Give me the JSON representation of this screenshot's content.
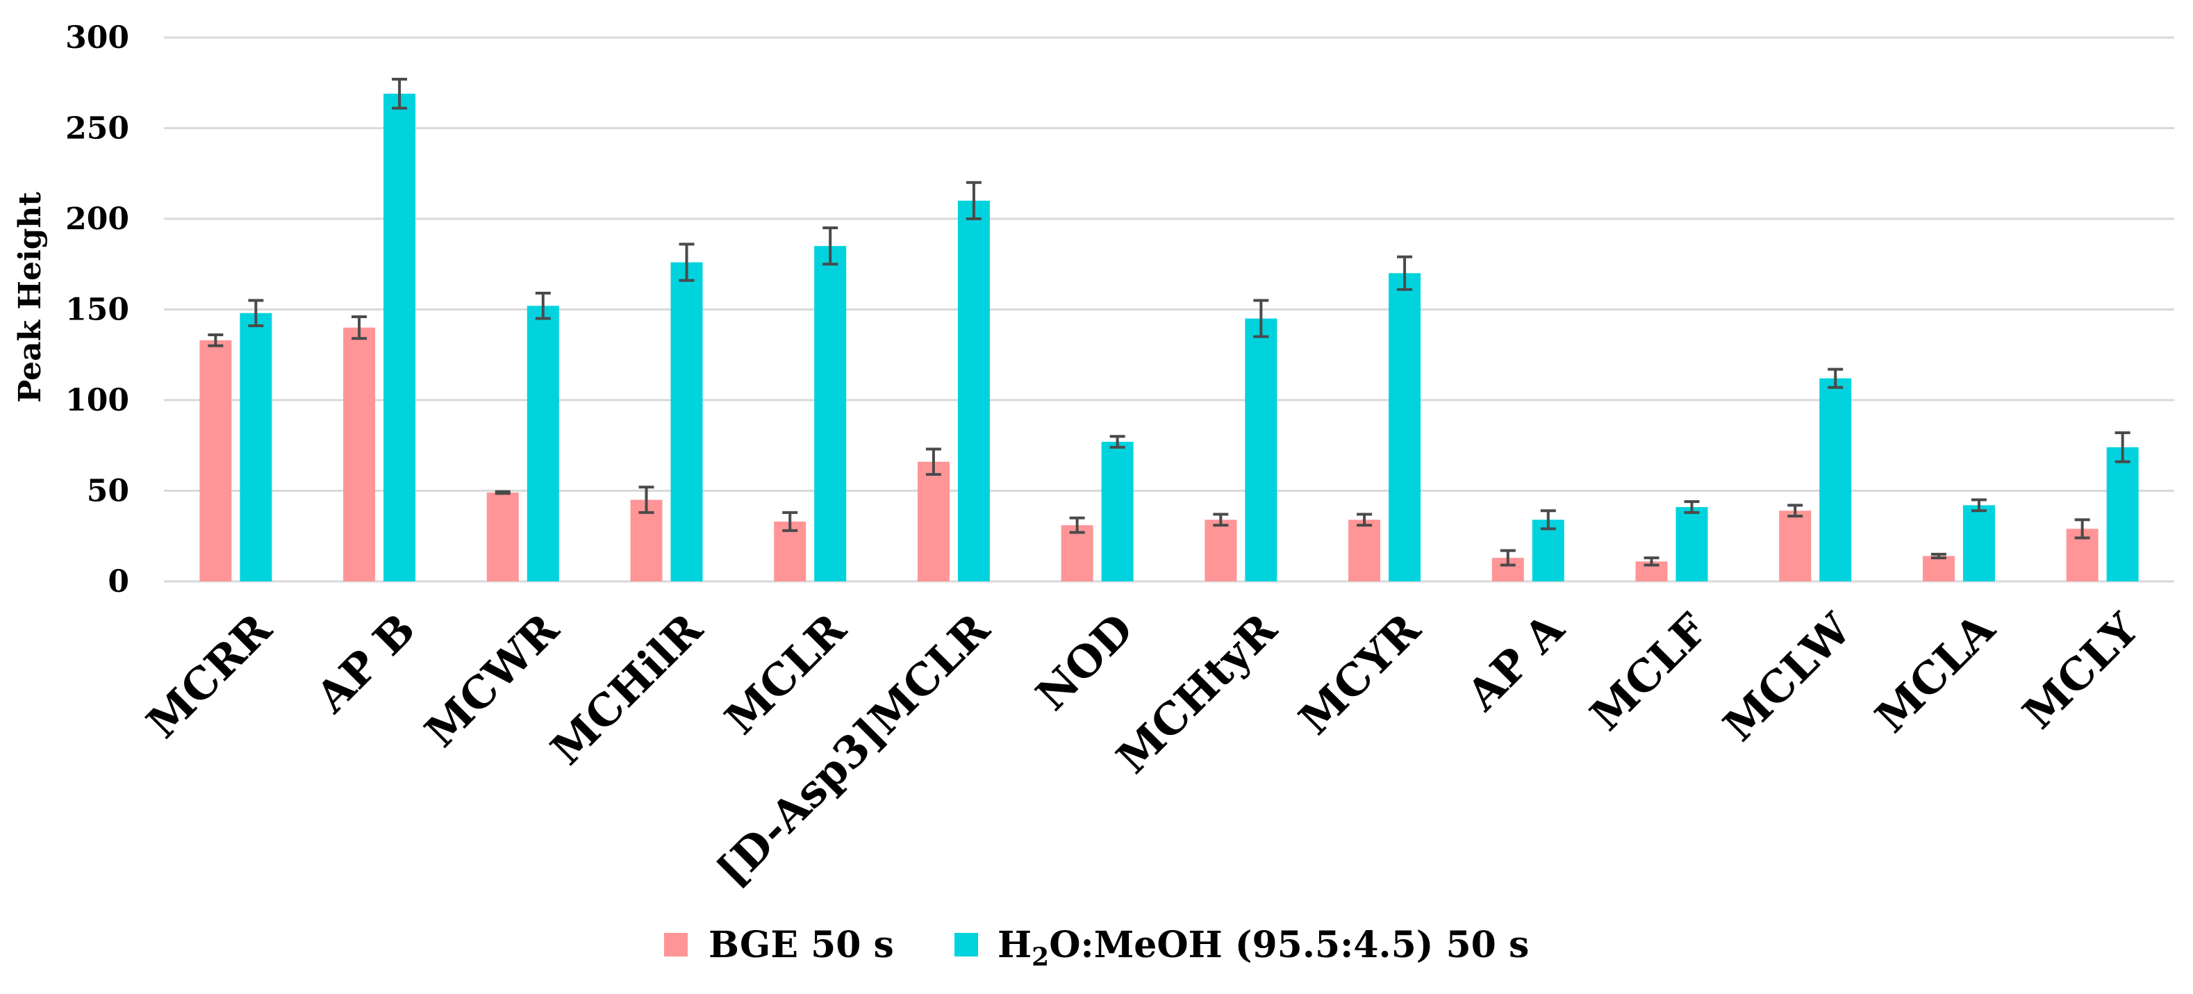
{
  "chart_data": {
    "type": "bar",
    "title": "",
    "xlabel": "",
    "ylabel": "Peak Height",
    "ylim": [
      0,
      300
    ],
    "yticks": [
      0,
      50,
      100,
      150,
      200,
      250,
      300
    ],
    "grid": true,
    "legend_position": "bottom",
    "categories": [
      "MCRR",
      "AP B",
      "MCWR",
      "MCHilR",
      "MCLR",
      "[D-Asp3]MCLR",
      "NOD",
      "MCHtyR",
      "MCYR",
      "AP A",
      "MCLF",
      "MCLW",
      "MCLA",
      "MCLY"
    ],
    "series": [
      {
        "name": "BGE 50 s",
        "color": "#ff9596",
        "values": [
          133,
          140,
          49,
          45,
          33,
          66,
          31,
          34,
          34,
          13,
          11,
          39,
          14,
          29
        ],
        "errors": [
          3,
          6,
          0.5,
          7,
          5,
          7,
          4,
          3,
          3,
          4,
          2,
          3,
          1,
          5
        ]
      },
      {
        "name": "H2O:MeOH (95.5:4.5) 50 s",
        "color": "#00d3de",
        "values": [
          148,
          269,
          152,
          176,
          185,
          210,
          77,
          145,
          170,
          34,
          41,
          112,
          42,
          74
        ],
        "errors": [
          7,
          8,
          7,
          10,
          10,
          10,
          3,
          10,
          9,
          5,
          3,
          5,
          3,
          8
        ]
      }
    ]
  },
  "legend": {
    "items": [
      {
        "label": "BGE 50 s"
      },
      {
        "label_pre": "H",
        "label_sub": "2",
        "label_post": "O:MeOH (95.5:4.5) 50 s"
      }
    ]
  }
}
